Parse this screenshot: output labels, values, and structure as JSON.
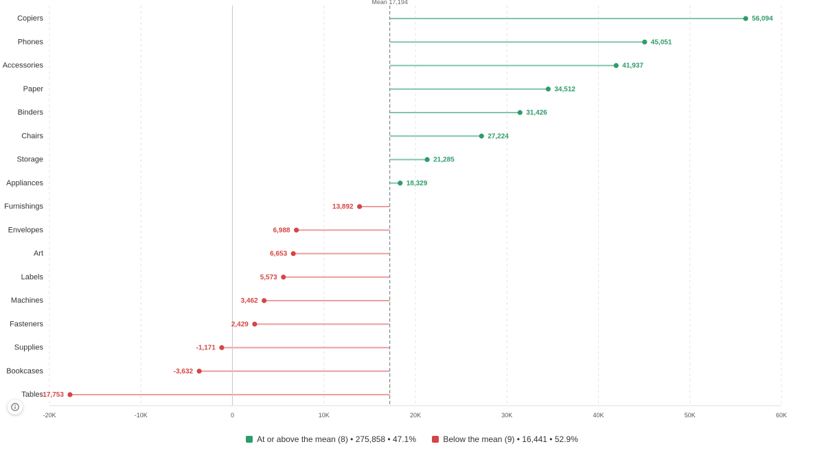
{
  "chart_data": {
    "type": "lollipop",
    "orientation": "horizontal",
    "title": "",
    "xlabel": "",
    "ylabel": "",
    "xlim": [
      -20000,
      60000
    ],
    "x_ticks": [
      -20000,
      -10000,
      0,
      10000,
      20000,
      30000,
      40000,
      50000,
      60000
    ],
    "x_tick_labels": [
      "-20K",
      "-10K",
      "0",
      "10K",
      "20K",
      "30K",
      "40K",
      "50K",
      "60K"
    ],
    "grid": true,
    "baseline": 0,
    "mean": 17194,
    "mean_label": "Mean 17,194",
    "categories": [
      "Copiers",
      "Phones",
      "Accessories",
      "Paper",
      "Binders",
      "Chairs",
      "Storage",
      "Appliances",
      "Furnishings",
      "Envelopes",
      "Art",
      "Labels",
      "Machines",
      "Fasteners",
      "Supplies",
      "Bookcases",
      "Tables"
    ],
    "values": [
      56094,
      45051,
      41937,
      34512,
      31426,
      27224,
      21285,
      18329,
      13892,
      6988,
      6653,
      5573,
      3462,
      2429,
      -1171,
      -3632,
      -17753
    ],
    "value_labels": [
      "56,094",
      "45,051",
      "41,937",
      "34,512",
      "31,426",
      "27,224",
      "21,285",
      "18,329",
      "13,892",
      "6,988",
      "6,653",
      "5,573",
      "3,462",
      "2,429",
      "-1,171",
      "-3,632",
      "-17,753"
    ],
    "legend_position": "bottom",
    "legend": [
      {
        "key": "above",
        "label": "At or above the mean (8) • 275,858 • 47.1%",
        "color": "#2e9c6a"
      },
      {
        "key": "below",
        "label": "Below the mean (9) • 16,441 • 52.9%",
        "color": "#d64545"
      }
    ],
    "colors": {
      "above_dot": "#2e9c6a",
      "above_line": "#7fc6a8",
      "below_dot": "#d64545",
      "below_line": "#ec9c9c",
      "mean_line": "#888888",
      "zero_line": "#cccccc",
      "grid": "#e4e4e4"
    }
  },
  "info_icon": "info-icon"
}
